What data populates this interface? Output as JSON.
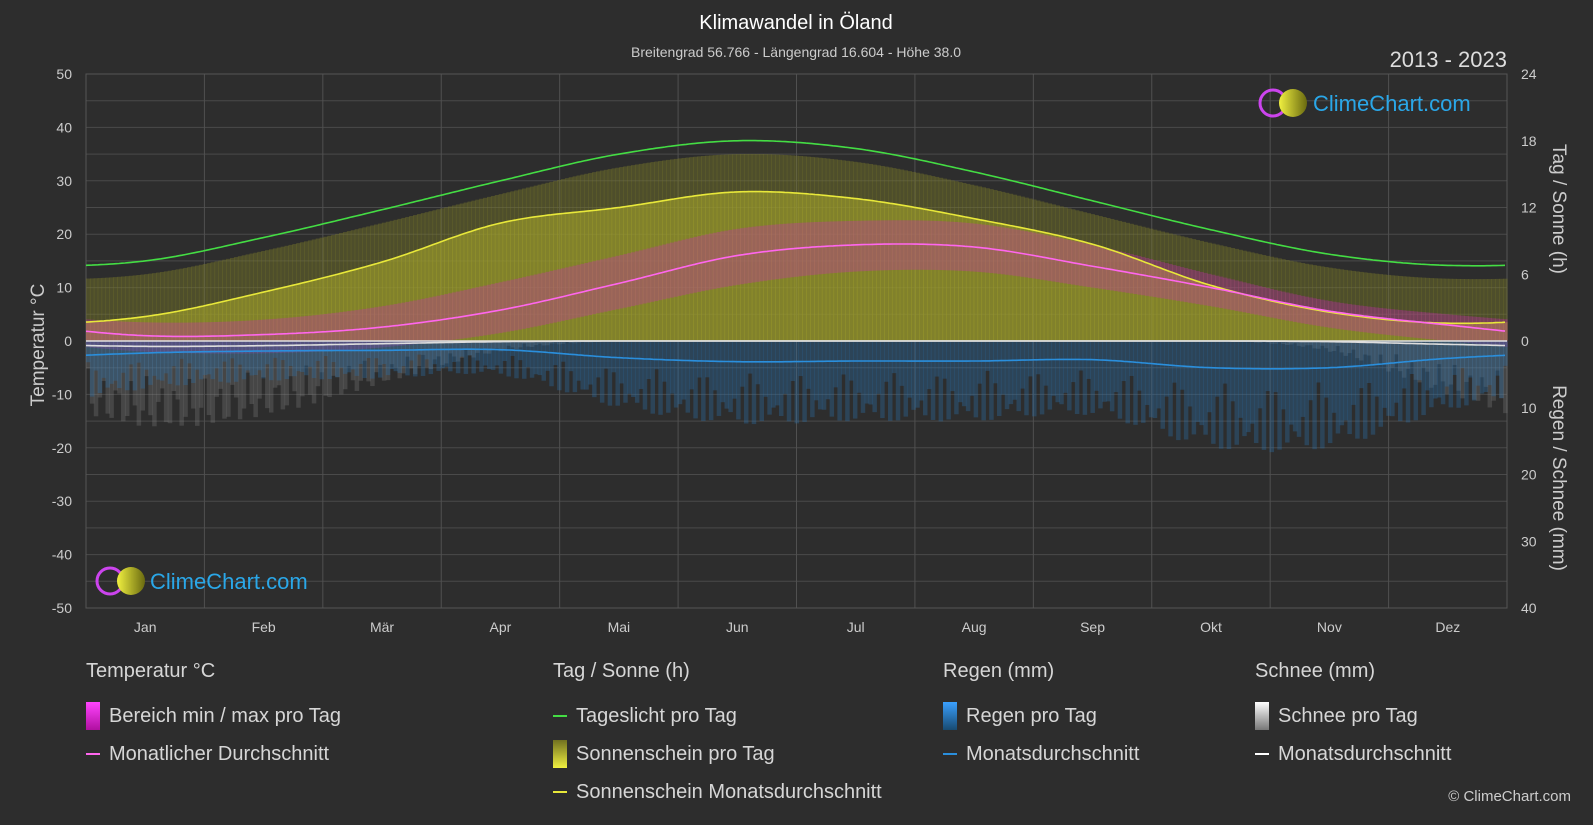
{
  "title": "Klimawandel in Öland",
  "subtitle": "Breitengrad 56.766 - Längengrad 16.604 - Höhe 38.0",
  "years": "2013 - 2023",
  "logo_text": "ClimeChart.com",
  "copyright": "© ClimeChart.com",
  "colors": {
    "background": "#2d2d2d",
    "daylight": "#44dd44",
    "sunshine": "#e8e83a",
    "temp_avg": "#ff66ee",
    "temp_range": "#d020c0",
    "rain": "#2a8fdd",
    "snow": "#ffffff",
    "logo": "#2aa7e8"
  },
  "chart_data": {
    "type": "line",
    "categories": [
      "Jan",
      "Feb",
      "Mär",
      "Apr",
      "Mai",
      "Jun",
      "Jul",
      "Aug",
      "Sep",
      "Okt",
      "Nov",
      "Dez"
    ],
    "y_left": {
      "label": "Temperatur °C",
      "range": [
        -50,
        50
      ],
      "ticks": [
        50,
        40,
        30,
        20,
        10,
        0,
        -10,
        -20,
        -30,
        -40,
        -50
      ]
    },
    "y_right_top": {
      "label": "Tag / Sonne (h)",
      "range": [
        0,
        24
      ],
      "ticks": [
        24,
        18,
        12,
        6,
        0
      ]
    },
    "y_right_bottom": {
      "label": "Regen / Schnee (mm)",
      "range": [
        0,
        40
      ],
      "ticks": [
        10,
        20,
        30,
        40
      ]
    },
    "grid": true,
    "series": [
      {
        "name": "Tageslicht pro Tag",
        "unit": "h",
        "values": [
          7.2,
          9.3,
          11.8,
          14.4,
          16.8,
          18.0,
          17.3,
          15.2,
          12.6,
          10.0,
          7.8,
          6.8
        ]
      },
      {
        "name": "Sonnenschein Monatsdurchschnitt",
        "unit": "h",
        "values": [
          2.2,
          4.4,
          7.1,
          10.6,
          12.0,
          13.4,
          12.8,
          11.0,
          8.7,
          5.0,
          2.6,
          1.6
        ]
      },
      {
        "name": "Monatlicher Durchschnitt",
        "unit": "°C",
        "values": [
          1.0,
          1.2,
          2.6,
          5.8,
          10.8,
          16.0,
          18.0,
          17.6,
          14.0,
          10.0,
          5.6,
          3.0
        ]
      },
      {
        "name": "Bereich min / max pro Tag",
        "unit": "°C",
        "min": [
          -2.0,
          -2.3,
          -1.2,
          1.5,
          6.0,
          10.5,
          13.0,
          13.0,
          10.0,
          6.5,
          2.5,
          0.0
        ],
        "max": [
          3.5,
          4.0,
          6.5,
          11.0,
          16.0,
          21.0,
          22.5,
          22.0,
          18.0,
          12.5,
          7.5,
          5.0
        ]
      },
      {
        "name": "Regen Monatsdurchschnitt",
        "unit": "mm",
        "values": [
          1.8,
          1.5,
          1.4,
          1.3,
          2.5,
          3.1,
          3.0,
          3.0,
          2.8,
          4.0,
          4.0,
          2.6
        ]
      },
      {
        "name": "Schnee Monatsdurchschnitt",
        "unit": "mm",
        "values": [
          0.8,
          0.7,
          0.4,
          0.1,
          0,
          0,
          0,
          0,
          0,
          0,
          0.1,
          0.5
        ]
      }
    ]
  },
  "legend": {
    "temp": {
      "title": "Temperatur °C",
      "items": [
        "Bereich min / max pro Tag",
        "Monatlicher Durchschnitt"
      ]
    },
    "sun": {
      "title": "Tag / Sonne (h)",
      "items": [
        "Tageslicht pro Tag",
        "Sonnenschein pro Tag",
        "Sonnenschein Monatsdurchschnitt"
      ]
    },
    "rain": {
      "title": "Regen (mm)",
      "items": [
        "Regen pro Tag",
        "Monatsdurchschnitt"
      ]
    },
    "snow": {
      "title": "Schnee (mm)",
      "items": [
        "Schnee pro Tag",
        "Monatsdurchschnitt"
      ]
    }
  }
}
